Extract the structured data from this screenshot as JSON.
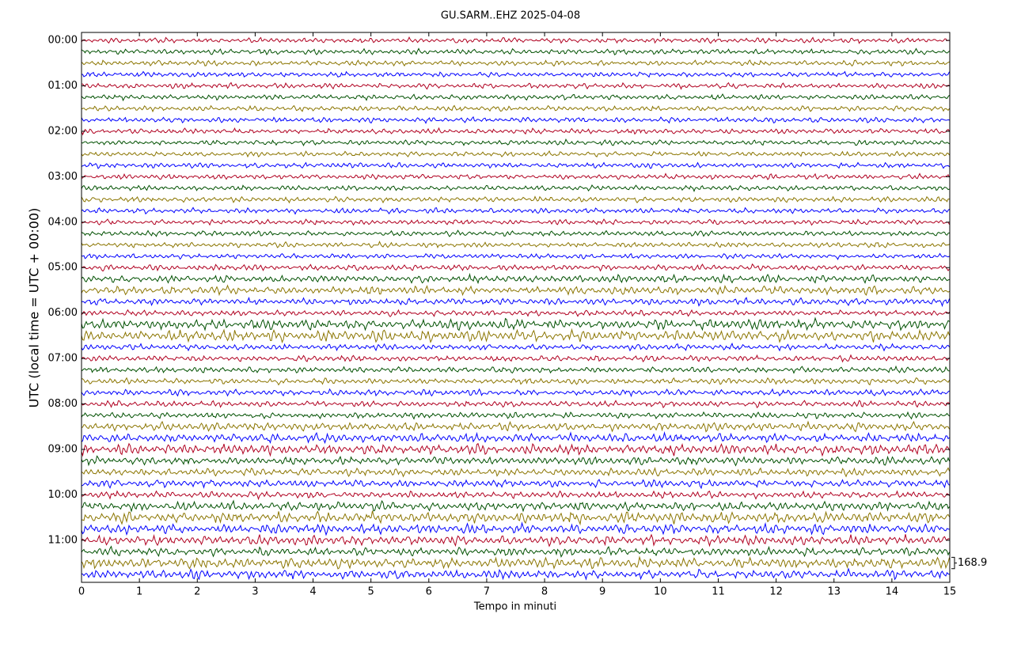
{
  "chart_data": {
    "type": "helicorder",
    "title": "GU.SARM..EHZ 2025-04-08",
    "xlabel": "Tempo in minuti",
    "ylabel": "UTC (local time = UTC + 00:00)",
    "xlim": [
      0,
      15
    ],
    "xticks": [
      0,
      1,
      2,
      3,
      4,
      5,
      6,
      7,
      8,
      9,
      10,
      11,
      12,
      13,
      14,
      15
    ],
    "ylim": [
      -0.175,
      11.925
    ],
    "yinverted": true,
    "yticks": [
      {
        "value": 0,
        "label": "00:00"
      },
      {
        "value": 1,
        "label": "01:00"
      },
      {
        "value": 2,
        "label": "02:00"
      },
      {
        "value": 3,
        "label": "03:00"
      },
      {
        "value": 4,
        "label": "04:00"
      },
      {
        "value": 5,
        "label": "05:00"
      },
      {
        "value": 6,
        "label": "06:00"
      },
      {
        "value": 7,
        "label": "07:00"
      },
      {
        "value": 8,
        "label": "08:00"
      },
      {
        "value": 9,
        "label": "09:00"
      },
      {
        "value": 10,
        "label": "10:00"
      },
      {
        "value": 11,
        "label": "11:00"
      }
    ],
    "colors": [
      "#b00020",
      "#005000",
      "#8b7500",
      "#0000ff"
    ],
    "scale": 168.9,
    "amplitudes": [
      35,
      35,
      35,
      35,
      35,
      35,
      35,
      35,
      35,
      35,
      35,
      35,
      35,
      35,
      35,
      35,
      35,
      35,
      35,
      35,
      40,
      50,
      55,
      45,
      40,
      70,
      75,
      40,
      40,
      40,
      40,
      40,
      40,
      40,
      55,
      60,
      70,
      55,
      50,
      50,
      45,
      60,
      75,
      65,
      65,
      55,
      70,
      60
    ]
  }
}
